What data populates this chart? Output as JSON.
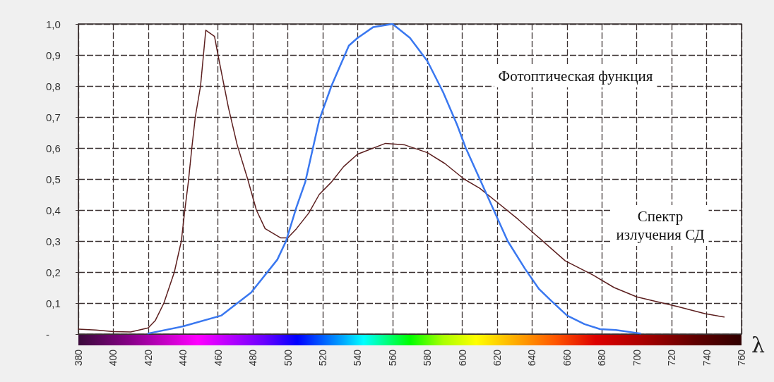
{
  "chart_data": {
    "type": "line",
    "xlabel": "λ",
    "xlim": [
      380,
      760
    ],
    "xticks": [
      380,
      400,
      420,
      440,
      460,
      480,
      500,
      520,
      540,
      560,
      580,
      600,
      620,
      640,
      660,
      680,
      700,
      720,
      740,
      760
    ],
    "ylim": [
      0,
      1
    ],
    "yticks": [
      {
        "value": 0,
        "label": "-"
      },
      {
        "value": 0.1,
        "label": "0,1"
      },
      {
        "value": 0.2,
        "label": "0,2"
      },
      {
        "value": 0.3,
        "label": "0,3"
      },
      {
        "value": 0.4,
        "label": "0,4"
      },
      {
        "value": 0.5,
        "label": "0,5"
      },
      {
        "value": 0.6,
        "label": "0,6"
      },
      {
        "value": 0.7,
        "label": "0,7"
      },
      {
        "value": 0.8,
        "label": "0,8"
      },
      {
        "value": 0.9,
        "label": "0,9"
      },
      {
        "value": 1,
        "label": "1,0"
      }
    ],
    "grid": true,
    "marker": "none",
    "series": [
      {
        "color": "#5c1f1f",
        "x": [
          380,
          390,
          400,
          410,
          420,
          424,
          429,
          435,
          439,
          441,
          443,
          445,
          447,
          450,
          453,
          458,
          460,
          466,
          471,
          477,
          482,
          487,
          496,
          500,
          505,
          512,
          518,
          525,
          532,
          540,
          556,
          567,
          580,
          590,
          601,
          610,
          620,
          632,
          642,
          659,
          675,
          687,
          700,
          711,
          723,
          739,
          750
        ],
        "values": [
          0.016,
          0.013,
          0.008,
          0.007,
          0.02,
          0.043,
          0.1,
          0.2,
          0.3,
          0.4,
          0.49,
          0.6,
          0.7,
          0.8,
          0.98,
          0.96,
          0.9,
          0.73,
          0.61,
          0.5,
          0.4,
          0.34,
          0.31,
          0.31,
          0.34,
          0.39,
          0.45,
          0.49,
          0.54,
          0.58,
          0.615,
          0.61,
          0.585,
          0.55,
          0.5,
          0.47,
          0.425,
          0.37,
          0.32,
          0.236,
          0.19,
          0.15,
          0.12,
          0.105,
          0.089,
          0.066,
          0.055
        ]
      },
      {
        "color": "#3a78f0",
        "x": [
          420,
          440,
          462,
          479,
          494,
          499,
          505,
          510,
          518,
          525,
          535,
          540,
          549,
          560,
          570,
          580,
          589,
          597,
          602,
          610,
          618,
          626,
          636,
          644,
          651,
          660,
          670,
          679,
          688,
          702
        ],
        "values": [
          0.002,
          0.025,
          0.06,
          0.134,
          0.24,
          0.3,
          0.41,
          0.49,
          0.69,
          0.8,
          0.93,
          0.955,
          0.99,
          1,
          0.955,
          0.88,
          0.78,
          0.675,
          0.6,
          0.5,
          0.4,
          0.3,
          0.21,
          0.145,
          0.107,
          0.06,
          0.032,
          0.016,
          0.013,
          0.002
        ]
      }
    ],
    "annotations": [
      "Фотоптическая функция",
      "Спектр\nизлучения СД"
    ]
  }
}
